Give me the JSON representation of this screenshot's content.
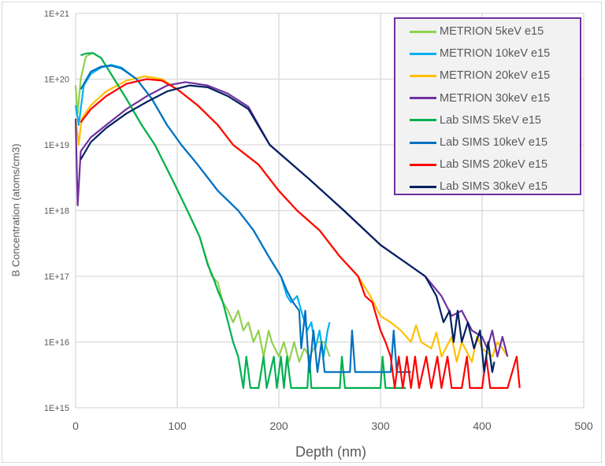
{
  "chart_data": {
    "type": "line",
    "title": "",
    "xlabel": "Depth (nm)",
    "ylabel": "B Concentration (atoms/cm3)",
    "xlim": [
      0,
      500
    ],
    "ylim": [
      1000000000000000.0,
      1e+21
    ],
    "yscale": "log",
    "grid": true,
    "legend_position": "top-right",
    "x_ticks": [
      "0",
      "100",
      "200",
      "300",
      "400",
      "500"
    ],
    "y_ticks": [
      "1E+15",
      "1E+16",
      "1E+17",
      "1E+18",
      "1E+19",
      "1E+20",
      "1E+21"
    ],
    "series": [
      {
        "name": "METRION 5keV e15",
        "color": "#92D050",
        "points": [
          [
            0,
            8e+19
          ],
          [
            2,
            3e+19
          ],
          [
            5,
            1e+20
          ],
          [
            10,
            2.2e+20
          ],
          [
            17,
            2.5e+20
          ],
          [
            25,
            2.1e+20
          ],
          [
            38,
            1e+20
          ],
          [
            50,
            5e+19
          ],
          [
            65,
            2e+19
          ],
          [
            78,
            1e+19
          ],
          [
            95,
            3e+18
          ],
          [
            110,
            1e+18
          ],
          [
            122,
            4e+17
          ],
          [
            134,
            1e+17
          ],
          [
            140,
            8e+16
          ],
          [
            145,
            4e+16
          ],
          [
            150,
            3e+16
          ],
          [
            155,
            2e+16
          ],
          [
            160,
            3e+16
          ],
          [
            165,
            1.5e+16
          ],
          [
            170,
            2e+16
          ],
          [
            175,
            1e+16
          ],
          [
            180,
            1.5e+16
          ],
          [
            185,
            6000000000000000.0
          ],
          [
            190,
            1.5e+16
          ],
          [
            193,
            1e+16
          ],
          [
            200,
            6000000000000000.0
          ],
          [
            205,
            1e+16
          ],
          [
            210,
            5000000000000000.0
          ],
          [
            215,
            1e+16
          ],
          [
            220,
            5000000000000000.0
          ],
          [
            225,
            8000000000000000.0
          ],
          [
            230,
            6000000000000000.0
          ],
          [
            238,
            1e+16
          ],
          [
            245,
            1e+16
          ],
          [
            250,
            6000000000000000.0
          ]
        ]
      },
      {
        "name": "METRION 10keV e15",
        "color": "#00B0F0",
        "points": [
          [
            0,
            4e+19
          ],
          [
            3,
            2e+19
          ],
          [
            8,
            8e+19
          ],
          [
            15,
            1.2e+20
          ],
          [
            25,
            1.5e+20
          ],
          [
            35,
            1.65e+20
          ],
          [
            45,
            1.5e+20
          ],
          [
            60,
            1e+20
          ],
          [
            75,
            5e+19
          ],
          [
            90,
            2e+19
          ],
          [
            104,
            1e+19
          ],
          [
            120,
            5e+18
          ],
          [
            140,
            2e+18
          ],
          [
            160,
            1e+18
          ],
          [
            175,
            5e+17
          ],
          [
            190,
            2e+17
          ],
          [
            202,
            1e+17
          ],
          [
            208,
            5e+16
          ],
          [
            212,
            4e+16
          ],
          [
            218,
            5e+16
          ],
          [
            222,
            3e+16
          ],
          [
            228,
            1.5e+16
          ],
          [
            232,
            2e+16
          ],
          [
            236,
            8000000000000000.0
          ],
          [
            240,
            1.5e+16
          ],
          [
            244,
            6000000000000000.0
          ],
          [
            248,
            1.5e+16
          ],
          [
            250,
            2e+16
          ]
        ]
      },
      {
        "name": "METRION 20keV e15",
        "color": "#FFC000",
        "points": [
          [
            0,
            2.5e+19
          ],
          [
            3,
            1e+19
          ],
          [
            6,
            2.5e+19
          ],
          [
            15,
            4e+19
          ],
          [
            30,
            6.5e+19
          ],
          [
            50,
            9.5e+19
          ],
          [
            68,
            1.1e+20
          ],
          [
            85,
            1e+20
          ],
          [
            100,
            7e+19
          ],
          [
            120,
            4e+19
          ],
          [
            140,
            2e+19
          ],
          [
            155,
            1e+19
          ],
          [
            180,
            5e+18
          ],
          [
            200,
            2e+18
          ],
          [
            218,
            1e+18
          ],
          [
            240,
            5e+17
          ],
          [
            260,
            2e+17
          ],
          [
            278,
            1e+17
          ],
          [
            290,
            5e+16
          ],
          [
            300,
            2.5e+16
          ],
          [
            310,
            2e+16
          ],
          [
            320,
            1.5e+16
          ],
          [
            330,
            1e+16
          ],
          [
            335,
            1.8e+16
          ],
          [
            340,
            1e+16
          ],
          [
            350,
            8000000000000000.0
          ],
          [
            355,
            1.4e+16
          ],
          [
            360,
            6000000000000000.0
          ],
          [
            370,
            1.2e+16
          ],
          [
            375,
            5000000000000000.0
          ],
          [
            380,
            1e+16
          ],
          [
            390,
            5000000000000000.0
          ],
          [
            395,
            1.2e+16
          ],
          [
            400,
            8000000000000000.0
          ],
          [
            410,
            6000000000000000.0
          ],
          [
            415,
            1e+16
          ],
          [
            420,
            8000000000000000.0
          ],
          [
            425,
            6000000000000000.0
          ]
        ]
      },
      {
        "name": "METRION 30keV e15",
        "color": "#7030A0",
        "points": [
          [
            0,
            2.5e+19
          ],
          [
            2,
            1.2e+18
          ],
          [
            5,
            8e+18
          ],
          [
            15,
            1.3e+19
          ],
          [
            30,
            2e+19
          ],
          [
            50,
            3.5e+19
          ],
          [
            70,
            5.5e+19
          ],
          [
            90,
            8e+19
          ],
          [
            108,
            9e+19
          ],
          [
            130,
            8e+19
          ],
          [
            150,
            6e+19
          ],
          [
            170,
            3.8e+19
          ],
          [
            191,
            1e+19
          ],
          [
            230,
            3e+18
          ],
          [
            264,
            1e+18
          ],
          [
            300,
            3e+17
          ],
          [
            344,
            1e+17
          ],
          [
            360,
            5e+16
          ],
          [
            370,
            2.5e+16
          ],
          [
            380,
            3e+16
          ],
          [
            390,
            1.5e+16
          ],
          [
            400,
            1.2e+16
          ],
          [
            405,
            8000000000000000.0
          ],
          [
            410,
            1.5e+16
          ],
          [
            415,
            6000000000000000.0
          ],
          [
            420,
            1.2e+16
          ],
          [
            425,
            6000000000000000.0
          ]
        ]
      },
      {
        "name": "Lab SIMS 5keV e15",
        "color": "#00B050",
        "points": [
          [
            5,
            2.3e+20
          ],
          [
            10,
            2.45e+20
          ],
          [
            17,
            2.5e+20
          ],
          [
            25,
            2.1e+20
          ],
          [
            38,
            1e+20
          ],
          [
            50,
            5e+19
          ],
          [
            65,
            2e+19
          ],
          [
            78,
            1e+19
          ],
          [
            95,
            3e+18
          ],
          [
            110,
            1e+18
          ],
          [
            122,
            4e+17
          ],
          [
            130,
            1.5e+17
          ],
          [
            135,
            1e+17
          ],
          [
            140,
            6e+16
          ],
          [
            145,
            4e+16
          ],
          [
            150,
            2e+16
          ],
          [
            155,
            1e+16
          ],
          [
            160,
            6000000000000000.0
          ],
          [
            165,
            2000000000000000.0
          ],
          [
            168,
            6000000000000000.0
          ],
          [
            172,
            2000000000000000.0
          ],
          [
            180,
            2000000000000000.0
          ],
          [
            185,
            6000000000000000.0
          ],
          [
            188,
            2000000000000000.0
          ],
          [
            195,
            6000000000000000.0
          ],
          [
            198,
            2000000000000000.0
          ],
          [
            202,
            6000000000000000.0
          ],
          [
            205,
            2000000000000000.0
          ],
          [
            208,
            6000000000000000.0
          ],
          [
            212,
            2000000000000000.0
          ],
          [
            228,
            2000000000000000.0
          ],
          [
            230,
            6000000000000000.0
          ],
          [
            232,
            2000000000000000.0
          ],
          [
            260,
            2000000000000000.0
          ],
          [
            262,
            6000000000000000.0
          ],
          [
            265,
            2000000000000000.0
          ],
          [
            300,
            2000000000000000.0
          ],
          [
            302,
            6000000000000000.0
          ],
          [
            305,
            2000000000000000.0
          ],
          [
            325,
            2000000000000000.0
          ]
        ]
      },
      {
        "name": "Lab SIMS 10keV e15",
        "color": "#0070C0",
        "points": [
          [
            5,
            7e+19
          ],
          [
            15,
            1.3e+20
          ],
          [
            25,
            1.55e+20
          ],
          [
            35,
            1.6e+20
          ],
          [
            45,
            1.45e+20
          ],
          [
            60,
            1e+20
          ],
          [
            75,
            5e+19
          ],
          [
            90,
            2e+19
          ],
          [
            104,
            1e+19
          ],
          [
            120,
            5e+18
          ],
          [
            140,
            2e+18
          ],
          [
            160,
            1e+18
          ],
          [
            175,
            5e+17
          ],
          [
            190,
            2e+17
          ],
          [
            202,
            1e+17
          ],
          [
            208,
            6e+16
          ],
          [
            214,
            4e+16
          ],
          [
            220,
            3e+16
          ],
          [
            222,
            8000000000000000.0
          ],
          [
            226,
            3e+16
          ],
          [
            230,
            3500000000000000.0
          ],
          [
            234,
            1.5e+16
          ],
          [
            238,
            3500000000000000.0
          ],
          [
            242,
            1e+16
          ],
          [
            245,
            3500000000000000.0
          ],
          [
            270,
            3500000000000000.0
          ],
          [
            272,
            1.5e+16
          ],
          [
            275,
            3500000000000000.0
          ],
          [
            310,
            3500000000000000.0
          ],
          [
            313,
            1.5e+16
          ],
          [
            316,
            3500000000000000.0
          ],
          [
            330,
            3500000000000000.0
          ]
        ]
      },
      {
        "name": "Lab SIMS 20keV e15",
        "color": "#FF0000",
        "points": [
          [
            5,
            2.2e+19
          ],
          [
            15,
            3.5e+19
          ],
          [
            30,
            5.5e+19
          ],
          [
            50,
            8.5e+19
          ],
          [
            70,
            1e+20
          ],
          [
            85,
            9.5e+19
          ],
          [
            100,
            7e+19
          ],
          [
            120,
            4e+19
          ],
          [
            140,
            2e+19
          ],
          [
            155,
            1e+19
          ],
          [
            180,
            5e+18
          ],
          [
            200,
            2e+18
          ],
          [
            218,
            1e+18
          ],
          [
            240,
            5e+17
          ],
          [
            260,
            2e+17
          ],
          [
            278,
            1e+17
          ],
          [
            285,
            5e+16
          ],
          [
            292,
            4e+16
          ],
          [
            300,
            1.5e+16
          ],
          [
            305,
            1e+16
          ],
          [
            310,
            6000000000000000.0
          ],
          [
            314,
            2000000000000000.0
          ],
          [
            318,
            6000000000000000.0
          ],
          [
            322,
            2000000000000000.0
          ],
          [
            326,
            6000000000000000.0
          ],
          [
            330,
            2000000000000000.0
          ],
          [
            334,
            6000000000000000.0
          ],
          [
            338,
            2000000000000000.0
          ],
          [
            345,
            6000000000000000.0
          ],
          [
            350,
            2000000000000000.0
          ],
          [
            356,
            6000000000000000.0
          ],
          [
            360,
            2000000000000000.0
          ],
          [
            366,
            6000000000000000.0
          ],
          [
            370,
            2000000000000000.0
          ],
          [
            380,
            2000000000000000.0
          ],
          [
            385,
            6000000000000000.0
          ],
          [
            388,
            2000000000000000.0
          ],
          [
            400,
            2000000000000000.0
          ],
          [
            404,
            6000000000000000.0
          ],
          [
            408,
            2000000000000000.0
          ],
          [
            420,
            2000000000000000.0
          ],
          [
            425,
            2000000000000000.0
          ],
          [
            434,
            6000000000000000.0
          ],
          [
            437,
            2000000000000000.0
          ]
        ]
      },
      {
        "name": "Lab SIMS 30keV e15",
        "color": "#002060",
        "points": [
          [
            5,
            6e+18
          ],
          [
            15,
            1.1e+19
          ],
          [
            30,
            1.8e+19
          ],
          [
            50,
            3e+19
          ],
          [
            70,
            4.5e+19
          ],
          [
            90,
            6.5e+19
          ],
          [
            112,
            8e+19
          ],
          [
            130,
            7.5e+19
          ],
          [
            150,
            5.5e+19
          ],
          [
            170,
            3.5e+19
          ],
          [
            191,
            1e+19
          ],
          [
            230,
            3e+18
          ],
          [
            264,
            1e+18
          ],
          [
            300,
            3e+17
          ],
          [
            344,
            1e+17
          ],
          [
            355,
            5e+16
          ],
          [
            362,
            2e+16
          ],
          [
            368,
            3e+16
          ],
          [
            372,
            1e+16
          ],
          [
            376,
            3e+16
          ],
          [
            380,
            1e+16
          ],
          [
            386,
            2e+16
          ],
          [
            392,
            8000000000000000.0
          ],
          [
            398,
            1.5e+16
          ],
          [
            402,
            3500000000000000.0
          ],
          [
            406,
            1e+16
          ],
          [
            410,
            3500000000000000.0
          ],
          [
            412,
            5000000000000000.0
          ]
        ]
      }
    ]
  }
}
